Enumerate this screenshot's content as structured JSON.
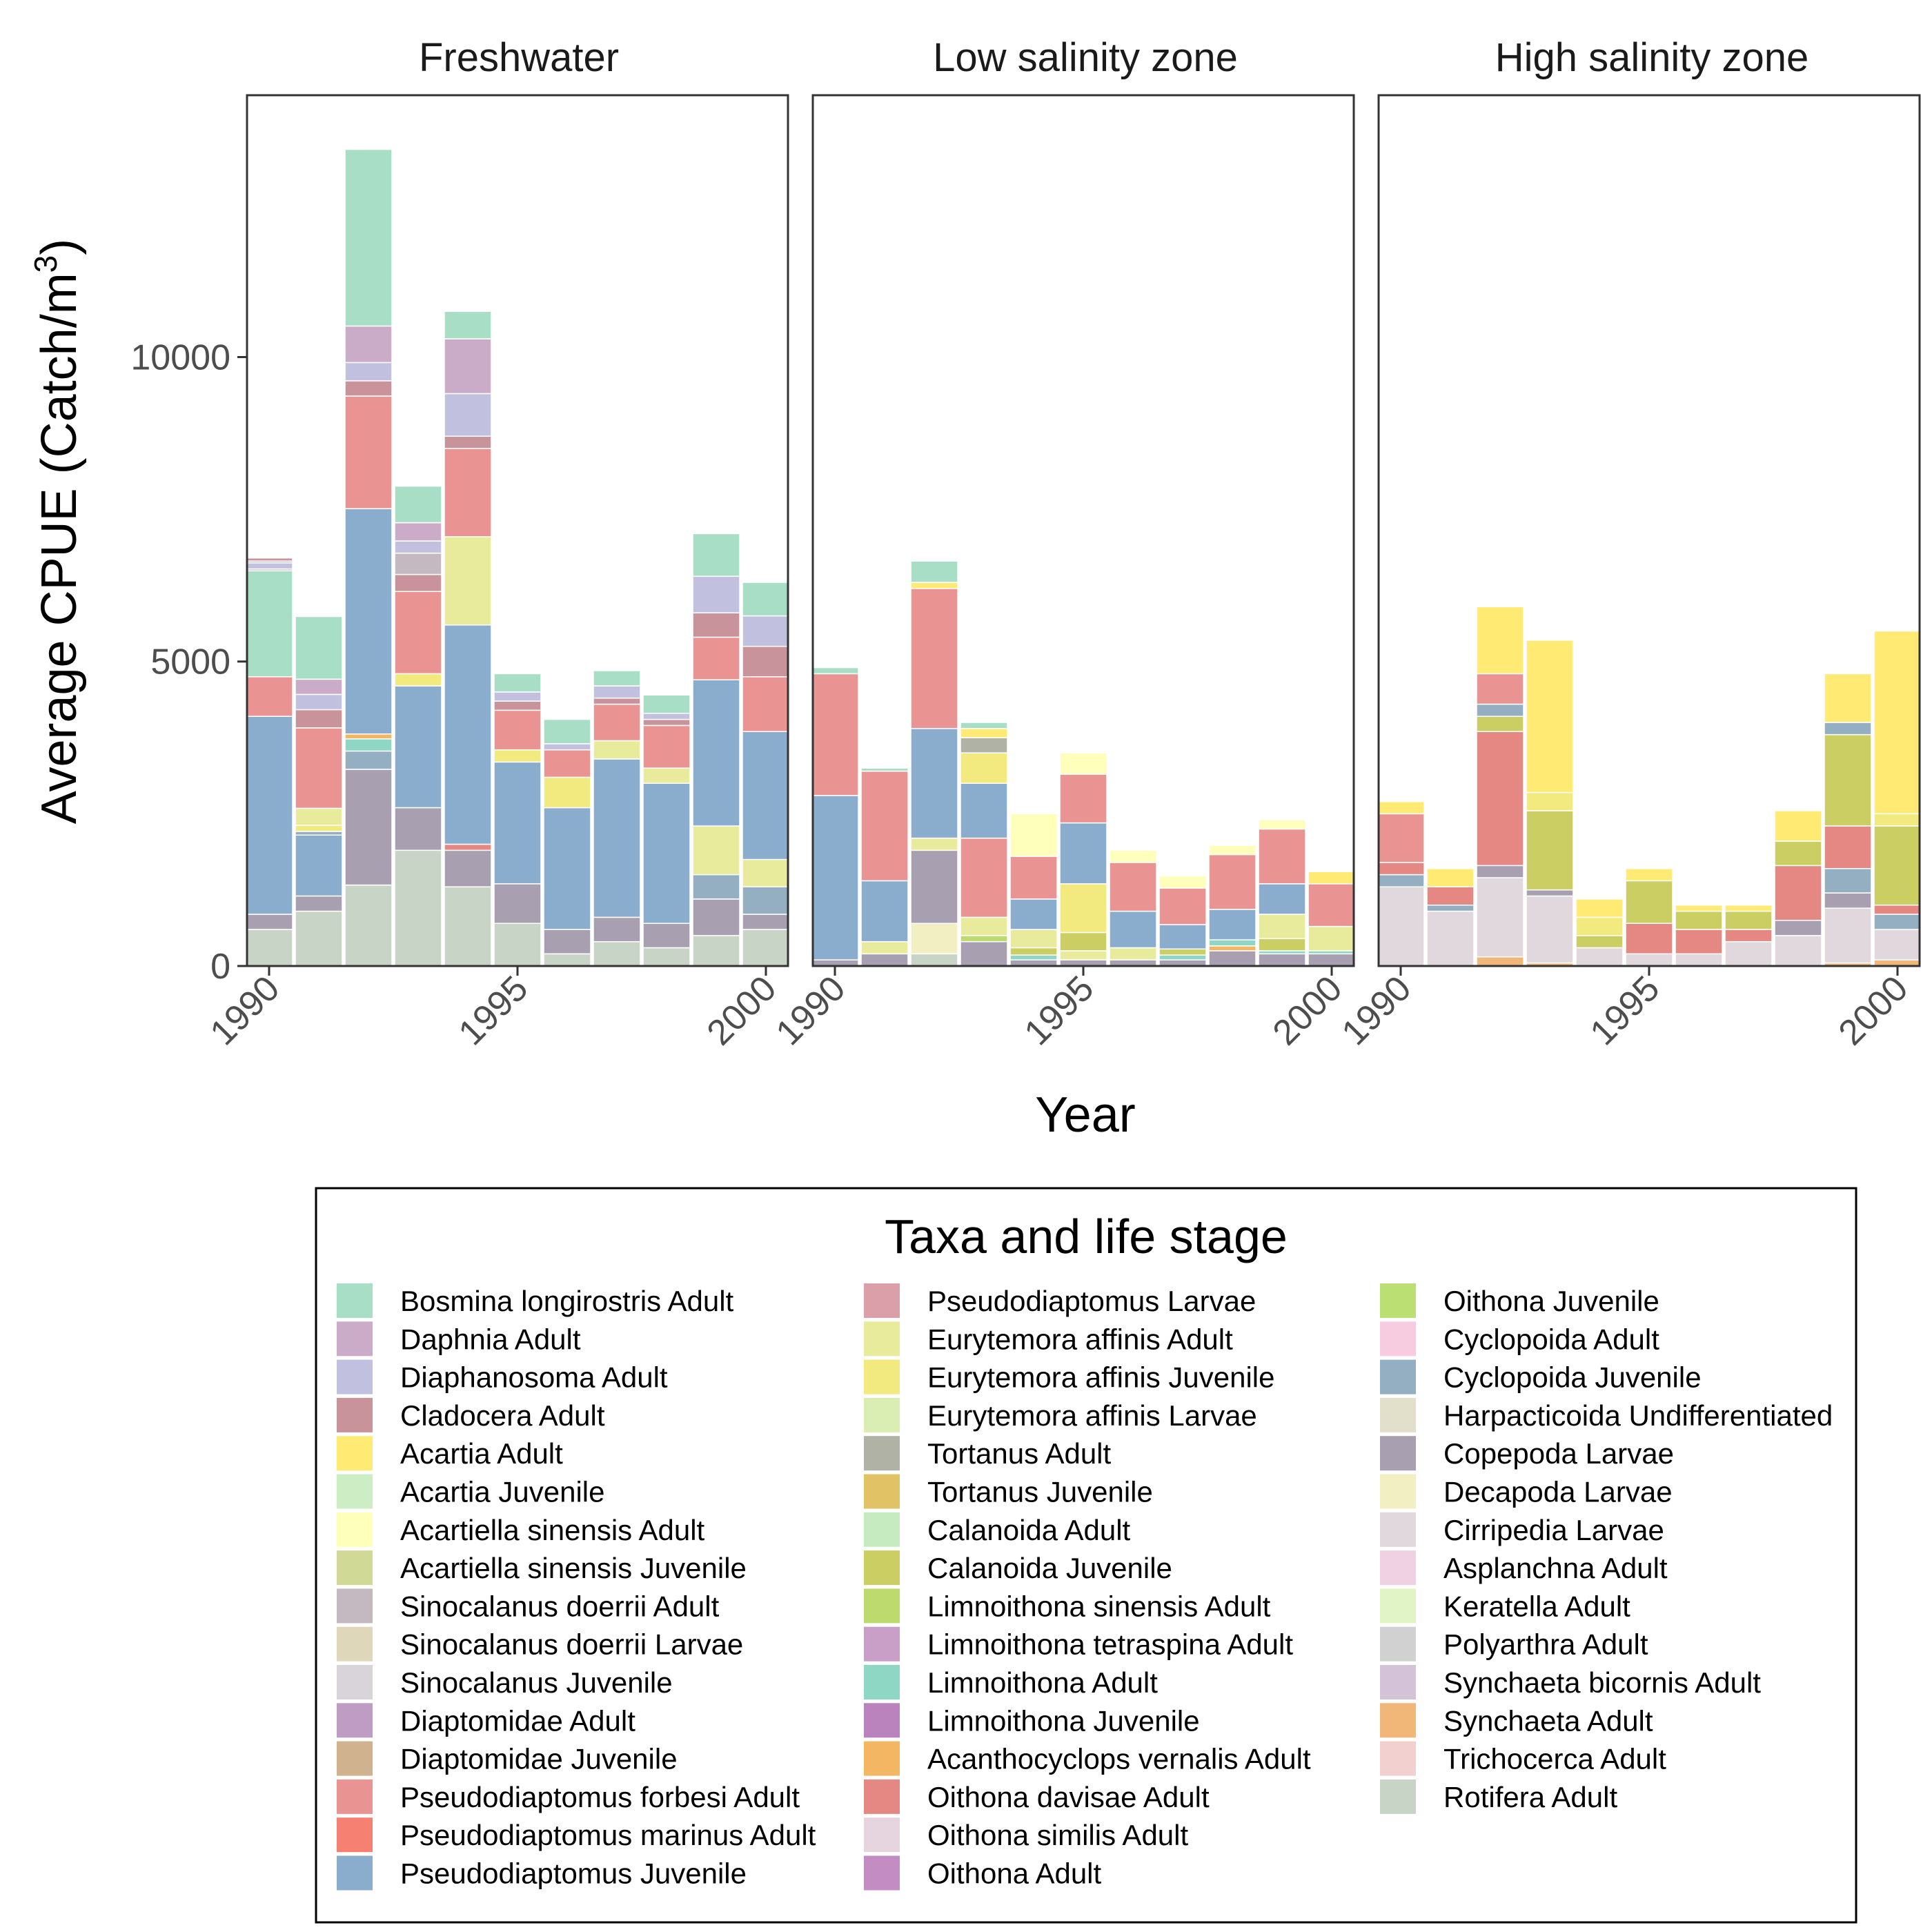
{
  "chart_data": {
    "type": "bar",
    "stacked": true,
    "facets": [
      "Freshwater",
      "Low salinity zone",
      "High salinity zone"
    ],
    "x": [
      1990,
      1991,
      1992,
      1993,
      1994,
      1995,
      1996,
      1997,
      1998,
      1999,
      2000
    ],
    "x_ticks": [
      "1990",
      "1995",
      "2000"
    ],
    "xlabel": "Year",
    "ylabel_main": "Average CPUE (Catch/m",
    "ylabel_sup": "3",
    "ylabel_close": ")",
    "ylim": [
      0,
      14300
    ],
    "y_ticks": [
      "0",
      "5000",
      "10000"
    ],
    "y_tick_values": [
      0,
      5000,
      10000
    ],
    "legend_title": "Taxa and life stage",
    "taxa": [
      {
        "name": "Bosmina longirostris Adult",
        "color": "#A8DEC5"
      },
      {
        "name": "Daphnia Adult",
        "color": "#CBACC8"
      },
      {
        "name": "Diaphanosoma Adult",
        "color": "#C1C0DE"
      },
      {
        "name": "Cladocera Adult",
        "color": "#C8939A"
      },
      {
        "name": "Acartia Adult",
        "color": "#FFEB73"
      },
      {
        "name": "Acartia Juvenile",
        "color": "#CDEDC5"
      },
      {
        "name": "Acartiella sinensis Adult",
        "color": "#FEFFBB"
      },
      {
        "name": "Acartiella sinensis Juvenile",
        "color": "#D0D996"
      },
      {
        "name": "Sinocalanus doerrii Adult",
        "color": "#C4B9C1"
      },
      {
        "name": "Sinocalanus doerrii Larvae",
        "color": "#DED7B9"
      },
      {
        "name": "Sinocalanus Juvenile",
        "color": "#D8D4D9"
      },
      {
        "name": "Diaptomidae Adult",
        "color": "#BF9CC4"
      },
      {
        "name": "Diaptomidae Juvenile",
        "color": "#D1B28E"
      },
      {
        "name": "Pseudodiaptomus forbesi Adult",
        "color": "#E99492"
      },
      {
        "name": "Pseudodiaptomus marinus Adult",
        "color": "#F68072"
      },
      {
        "name": "Pseudodiaptomus Juvenile",
        "color": "#8BADCD"
      },
      {
        "name": "Pseudodiaptomus Larvae",
        "color": "#DA9FA8"
      },
      {
        "name": "Eurytemora affinis Adult",
        "color": "#E8EB9C"
      },
      {
        "name": "Eurytemora affinis Juvenile",
        "color": "#F2EA7E"
      },
      {
        "name": "Eurytemora affinis Larvae",
        "color": "#DAEDB2"
      },
      {
        "name": "Tortanus Adult",
        "color": "#AFB2A4"
      },
      {
        "name": "Tortanus Juvenile",
        "color": "#E1C366"
      },
      {
        "name": "Calanoida Adult",
        "color": "#C6EBC1"
      },
      {
        "name": "Calanoida Juvenile",
        "color": "#CBCE62"
      },
      {
        "name": "Limnoithona sinensis Adult",
        "color": "#BDDA6F"
      },
      {
        "name": "Limnoithona tetraspina Adult",
        "color": "#C99FC8"
      },
      {
        "name": "Limnoithona Adult",
        "color": "#8ED7C5"
      },
      {
        "name": "Limnoithona Juvenile",
        "color": "#BA83BD"
      },
      {
        "name": "Acanthocyclops vernalis Adult",
        "color": "#F3B763"
      },
      {
        "name": "Oithona davisae Adult",
        "color": "#E58883"
      },
      {
        "name": "Oithona similis Adult",
        "color": "#E6D4DE"
      },
      {
        "name": "Oithona Adult",
        "color": "#C38DC4"
      },
      {
        "name": "Oithona Juvenile",
        "color": "#BCDF74"
      },
      {
        "name": "Cyclopoida Adult",
        "color": "#F7CCE0"
      },
      {
        "name": "Cyclopoida Juvenile",
        "color": "#94AFC1"
      },
      {
        "name": "Harpacticoida Undifferentiated",
        "color": "#E2E0CB"
      },
      {
        "name": "Copepoda Larvae",
        "color": "#A8A0B1"
      },
      {
        "name": "Decapoda Larvae",
        "color": "#F2EFC2"
      },
      {
        "name": "Cirripedia Larvae",
        "color": "#E0D8DD"
      },
      {
        "name": "Asplanchna Adult",
        "color": "#F0D1E4"
      },
      {
        "name": "Keratella Adult",
        "color": "#E1F4C5"
      },
      {
        "name": "Polyarthra Adult",
        "color": "#D1D1D1"
      },
      {
        "name": "Synchaeta bicornis Adult",
        "color": "#D3C2D8"
      },
      {
        "name": "Synchaeta Adult",
        "color": "#F1B779"
      },
      {
        "name": "Trichocerca Adult",
        "color": "#F2D0D0"
      },
      {
        "name": "Rotifera Adult",
        "color": "#C8D5C6"
      }
    ],
    "series_segments": [
      [
        [
          [
            45,
            600
          ],
          [
            36,
            250
          ],
          [
            15,
            3250
          ],
          [
            13,
            650
          ],
          [
            0,
            1740
          ],
          [
            1,
            30
          ],
          [
            2,
            100
          ],
          [
            8,
            30
          ],
          [
            3,
            50
          ]
        ],
        [
          [
            45,
            900
          ],
          [
            36,
            250
          ],
          [
            15,
            1000
          ],
          [
            34,
            60
          ],
          [
            18,
            100
          ],
          [
            17,
            280
          ],
          [
            13,
            1320
          ],
          [
            3,
            300
          ],
          [
            2,
            250
          ],
          [
            1,
            250
          ],
          [
            0,
            1030
          ]
        ],
        [
          [
            45,
            1330
          ],
          [
            36,
            1900
          ],
          [
            34,
            300
          ],
          [
            26,
            200
          ],
          [
            28,
            80
          ],
          [
            15,
            3700
          ],
          [
            13,
            1850
          ],
          [
            3,
            250
          ],
          [
            2,
            300
          ],
          [
            1,
            600
          ],
          [
            0,
            2900
          ]
        ],
        [
          [
            45,
            1900
          ],
          [
            36,
            700
          ],
          [
            15,
            2000
          ],
          [
            18,
            200
          ],
          [
            13,
            1350
          ],
          [
            3,
            280
          ],
          [
            8,
            350
          ],
          [
            2,
            200
          ],
          [
            1,
            300
          ],
          [
            0,
            600
          ]
        ],
        [
          [
            45,
            1300
          ],
          [
            36,
            600
          ],
          [
            29,
            100
          ],
          [
            15,
            3600
          ],
          [
            17,
            1450
          ],
          [
            13,
            1450
          ],
          [
            3,
            200
          ],
          [
            2,
            700
          ],
          [
            1,
            900
          ],
          [
            0,
            450
          ]
        ],
        [
          [
            45,
            700
          ],
          [
            36,
            650
          ],
          [
            15,
            2000
          ],
          [
            18,
            200
          ],
          [
            13,
            650
          ],
          [
            3,
            150
          ],
          [
            2,
            150
          ],
          [
            0,
            300
          ]
        ],
        [
          [
            45,
            200
          ],
          [
            36,
            400
          ],
          [
            15,
            2000
          ],
          [
            18,
            500
          ],
          [
            13,
            450
          ],
          [
            2,
            100
          ],
          [
            0,
            400
          ]
        ],
        [
          [
            45,
            400
          ],
          [
            36,
            400
          ],
          [
            15,
            2600
          ],
          [
            17,
            300
          ],
          [
            13,
            600
          ],
          [
            3,
            100
          ],
          [
            2,
            200
          ],
          [
            0,
            250
          ]
        ],
        [
          [
            45,
            300
          ],
          [
            36,
            400
          ],
          [
            15,
            2300
          ],
          [
            17,
            250
          ],
          [
            13,
            700
          ],
          [
            3,
            100
          ],
          [
            2,
            100
          ],
          [
            0,
            300
          ]
        ],
        [
          [
            45,
            500
          ],
          [
            36,
            600
          ],
          [
            34,
            400
          ],
          [
            17,
            800
          ],
          [
            15,
            2400
          ],
          [
            13,
            700
          ],
          [
            3,
            400
          ],
          [
            2,
            600
          ],
          [
            0,
            700
          ]
        ],
        [
          [
            45,
            600
          ],
          [
            36,
            250
          ],
          [
            34,
            450
          ],
          [
            17,
            450
          ],
          [
            15,
            2100
          ],
          [
            13,
            900
          ],
          [
            3,
            500
          ],
          [
            2,
            500
          ],
          [
            0,
            550
          ]
        ]
      ],
      [
        [
          [
            44,
            0
          ],
          [
            36,
            100
          ],
          [
            15,
            2700
          ],
          [
            13,
            2000
          ],
          [
            0,
            100
          ]
        ],
        [
          [
            36,
            200
          ],
          [
            17,
            200
          ],
          [
            15,
            1000
          ],
          [
            13,
            1800
          ],
          [
            0,
            50
          ]
        ],
        [
          [
            45,
            200
          ],
          [
            37,
            500
          ],
          [
            36,
            1200
          ],
          [
            17,
            200
          ],
          [
            15,
            1800
          ],
          [
            13,
            2300
          ],
          [
            4,
            100
          ],
          [
            0,
            350
          ]
        ],
        [
          [
            36,
            400
          ],
          [
            24,
            100
          ],
          [
            17,
            300
          ],
          [
            13,
            1300
          ],
          [
            15,
            900
          ],
          [
            18,
            500
          ],
          [
            20,
            250
          ],
          [
            4,
            150
          ],
          [
            0,
            100
          ]
        ],
        [
          [
            36,
            100
          ],
          [
            26,
            80
          ],
          [
            23,
            120
          ],
          [
            17,
            300
          ],
          [
            15,
            500
          ],
          [
            13,
            700
          ],
          [
            6,
            700
          ]
        ],
        [
          [
            36,
            100
          ],
          [
            17,
            150
          ],
          [
            23,
            300
          ],
          [
            18,
            800
          ],
          [
            15,
            1000
          ],
          [
            13,
            800
          ],
          [
            6,
            350
          ]
        ],
        [
          [
            36,
            100
          ],
          [
            17,
            200
          ],
          [
            15,
            600
          ],
          [
            13,
            800
          ],
          [
            6,
            200
          ]
        ],
        [
          [
            36,
            100
          ],
          [
            26,
            80
          ],
          [
            23,
            100
          ],
          [
            15,
            400
          ],
          [
            13,
            600
          ],
          [
            6,
            200
          ]
        ],
        [
          [
            36,
            250
          ],
          [
            28,
            80
          ],
          [
            26,
            100
          ],
          [
            15,
            500
          ],
          [
            13,
            900
          ],
          [
            6,
            150
          ]
        ],
        [
          [
            36,
            200
          ],
          [
            26,
            50
          ],
          [
            23,
            200
          ],
          [
            17,
            400
          ],
          [
            15,
            500
          ],
          [
            13,
            900
          ],
          [
            6,
            150
          ]
        ],
        [
          [
            36,
            200
          ],
          [
            26,
            50
          ],
          [
            17,
            400
          ],
          [
            13,
            700
          ],
          [
            4,
            200
          ]
        ]
      ],
      [
        [
          [
            38,
            1300
          ],
          [
            34,
            200
          ],
          [
            29,
            200
          ],
          [
            13,
            800
          ],
          [
            4,
            200
          ]
        ],
        [
          [
            38,
            900
          ],
          [
            34,
            100
          ],
          [
            29,
            300
          ],
          [
            4,
            300
          ]
        ],
        [
          [
            43,
            150
          ],
          [
            38,
            1300
          ],
          [
            36,
            200
          ],
          [
            29,
            2200
          ],
          [
            23,
            250
          ],
          [
            34,
            200
          ],
          [
            13,
            500
          ],
          [
            4,
            1100
          ]
        ],
        [
          [
            43,
            50
          ],
          [
            38,
            1100
          ],
          [
            36,
            100
          ],
          [
            23,
            1300
          ],
          [
            18,
            300
          ],
          [
            4,
            2500
          ]
        ],
        [
          [
            38,
            300
          ],
          [
            23,
            200
          ],
          [
            18,
            300
          ],
          [
            4,
            300
          ]
        ],
        [
          [
            38,
            200
          ],
          [
            29,
            500
          ],
          [
            23,
            700
          ],
          [
            4,
            200
          ]
        ],
        [
          [
            38,
            200
          ],
          [
            29,
            400
          ],
          [
            23,
            300
          ],
          [
            4,
            100
          ]
        ],
        [
          [
            38,
            400
          ],
          [
            29,
            200
          ],
          [
            23,
            300
          ],
          [
            4,
            100
          ]
        ],
        [
          [
            38,
            500
          ],
          [
            36,
            250
          ],
          [
            29,
            900
          ],
          [
            23,
            400
          ],
          [
            4,
            500
          ]
        ],
        [
          [
            43,
            50
          ],
          [
            38,
            900
          ],
          [
            36,
            250
          ],
          [
            34,
            400
          ],
          [
            29,
            700
          ],
          [
            23,
            1500
          ],
          [
            34,
            200
          ],
          [
            4,
            800
          ]
        ],
        [
          [
            43,
            100
          ],
          [
            38,
            500
          ],
          [
            34,
            250
          ],
          [
            29,
            150
          ],
          [
            23,
            1300
          ],
          [
            18,
            200
          ],
          [
            4,
            3000
          ]
        ]
      ]
    ]
  }
}
